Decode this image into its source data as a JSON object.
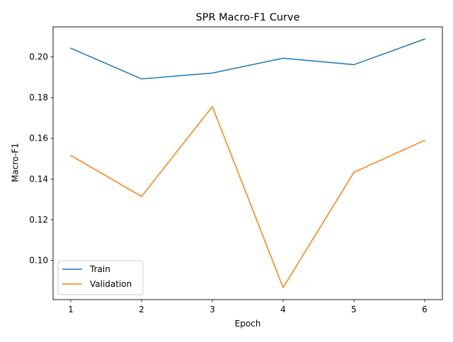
{
  "chart_data": {
    "type": "line",
    "title": "SPR Macro-F1 Curve",
    "xlabel": "Epoch",
    "ylabel": "Macro-F1",
    "x": [
      1,
      2,
      3,
      4,
      5,
      6
    ],
    "xticks": [
      "1",
      "2",
      "3",
      "4",
      "5",
      "6"
    ],
    "yticks": [
      "0.10",
      "0.12",
      "0.14",
      "0.16",
      "0.18",
      "0.20"
    ],
    "xlim": [
      0.75,
      6.25
    ],
    "ylim": [
      0.0807,
      0.2148
    ],
    "grid": false,
    "legend_position": "lower-left",
    "series": [
      {
        "name": "Train",
        "color": "#1f77b4",
        "values": [
          0.2043,
          0.1892,
          0.1921,
          0.1994,
          0.1962,
          0.2088
        ]
      },
      {
        "name": "Validation",
        "color": "#ff7f0e",
        "values": [
          0.1516,
          0.1314,
          0.1756,
          0.0866,
          0.1433,
          0.159
        ]
      }
    ]
  }
}
